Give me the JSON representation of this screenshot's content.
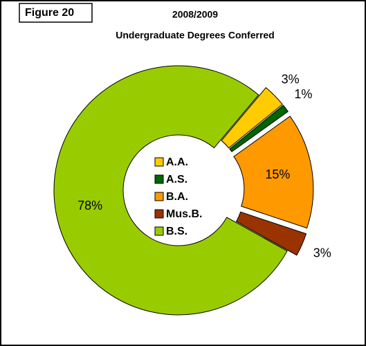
{
  "figure": "Figure 20",
  "chart_data": {
    "type": "donut",
    "title": "2008/2009",
    "subtitle": "Undergraduate Degrees Conferred",
    "categories": [
      "A.A.",
      "A.S.",
      "B.A.",
      "Mus.B.",
      "B.S."
    ],
    "values": [
      3,
      1,
      15,
      3,
      78
    ],
    "value_labels": [
      "3%",
      "1%",
      "15%",
      "3%",
      "78%"
    ],
    "colors": [
      "#ffcc00",
      "#006600",
      "#ff9900",
      "#993300",
      "#99cc00"
    ],
    "exploded": [
      true,
      true,
      true,
      true,
      false
    ],
    "legend": "center"
  }
}
